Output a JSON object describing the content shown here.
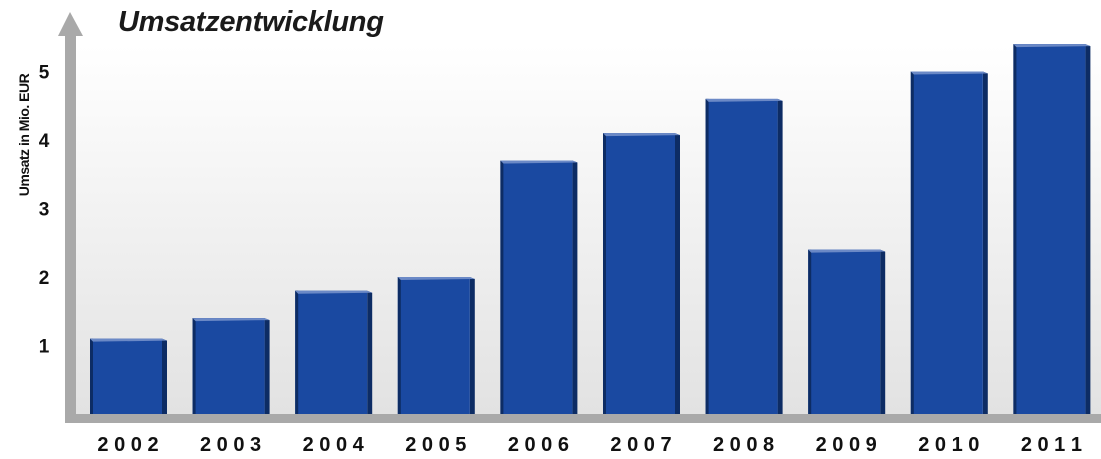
{
  "chart_data": {
    "type": "bar",
    "title": "Umsatzentwicklung",
    "ylabel": "Umsatz in Mio. EUR",
    "xlabel": "",
    "categories": [
      "2002",
      "2003",
      "2004",
      "2005",
      "2006",
      "2007",
      "2008",
      "2009",
      "2010",
      "2011"
    ],
    "category_labels": [
      "2 0 0 2",
      "2 0 0 3",
      "2 0 0 4",
      "2 0 0 5",
      "2 0 0 6",
      "2 0 0 7",
      "2 0 0 8",
      "2 0 0 9",
      "2 0 1 0",
      "2 0 1 1"
    ],
    "values": [
      1.1,
      1.4,
      1.8,
      2.0,
      3.7,
      4.1,
      4.6,
      2.4,
      5.0,
      5.4
    ],
    "yticks": [
      1,
      2,
      3,
      4,
      5
    ],
    "ytick_labels": [
      "1",
      "2",
      "3",
      "4",
      "5"
    ],
    "ylim": [
      0,
      6
    ],
    "grid": false,
    "legend": "none",
    "colors": {
      "bar_front": "#1a49a1",
      "bar_side": "#0d2c64",
      "bar_top": "#6b89c6",
      "axis": "#a9a9a9",
      "plot_bg_top": "#ffffff",
      "plot_bg_bottom": "#e2e2e2",
      "text": "#111111"
    }
  }
}
